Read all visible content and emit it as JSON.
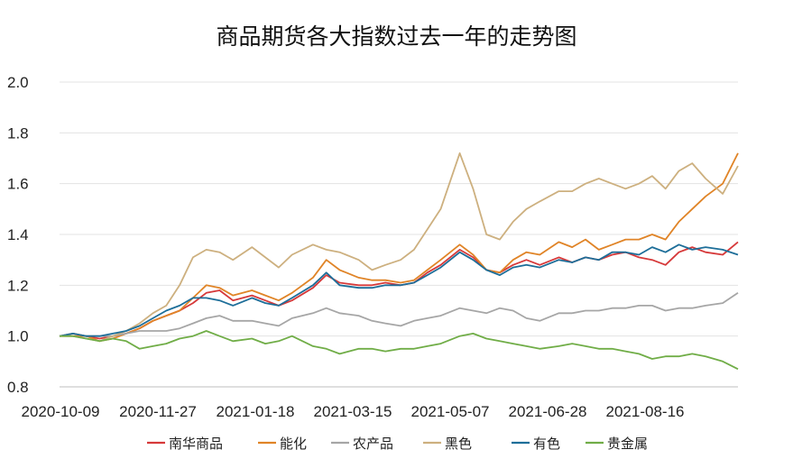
{
  "chart_data": {
    "type": "line",
    "title": "商品期货各大指数过去一年的走势图",
    "xlabel": "",
    "ylabel": "",
    "x_ticks": [
      "2020-10-09",
      "2020-11-27",
      "2021-01-18",
      "2021-03-15",
      "2021-05-07",
      "2021-06-28",
      "2021-08-16"
    ],
    "ylim": [
      0.8,
      2.0
    ],
    "y_ticks": [
      "0.8",
      "1.0",
      "1.2",
      "1.4",
      "1.6",
      "1.8",
      "2.0"
    ],
    "grid": "horizontal",
    "legend_position": "bottom",
    "x": [
      "2020-10-09",
      "2020-10-16",
      "2020-10-23",
      "2020-10-30",
      "2020-11-06",
      "2020-11-13",
      "2020-11-20",
      "2020-11-27",
      "2020-12-04",
      "2020-12-11",
      "2020-12-18",
      "2020-12-25",
      "2021-01-01",
      "2021-01-08",
      "2021-01-18",
      "2021-01-25",
      "2021-02-01",
      "2021-02-08",
      "2021-02-19",
      "2021-02-26",
      "2021-03-05",
      "2021-03-15",
      "2021-03-22",
      "2021-03-29",
      "2021-04-06",
      "2021-04-13",
      "2021-04-20",
      "2021-04-27",
      "2021-05-07",
      "2021-05-14",
      "2021-05-21",
      "2021-05-28",
      "2021-06-04",
      "2021-06-11",
      "2021-06-18",
      "2021-06-28",
      "2021-07-05",
      "2021-07-12",
      "2021-07-19",
      "2021-07-26",
      "2021-08-02",
      "2021-08-09",
      "2021-08-16",
      "2021-08-23",
      "2021-08-30",
      "2021-09-06",
      "2021-09-13",
      "2021-09-22",
      "2021-09-30"
    ],
    "series": [
      {
        "name": "南华商品",
        "color": "#d6393a",
        "values": [
          1.0,
          1.01,
          1.0,
          0.99,
          1.0,
          1.01,
          1.03,
          1.06,
          1.08,
          1.1,
          1.13,
          1.17,
          1.18,
          1.14,
          1.16,
          1.14,
          1.12,
          1.14,
          1.19,
          1.24,
          1.21,
          1.2,
          1.2,
          1.21,
          1.2,
          1.21,
          1.25,
          1.28,
          1.34,
          1.31,
          1.26,
          1.25,
          1.28,
          1.3,
          1.28,
          1.31,
          1.29,
          1.31,
          1.3,
          1.32,
          1.33,
          1.31,
          1.3,
          1.28,
          1.33,
          1.35,
          1.33,
          1.32,
          1.37
        ]
      },
      {
        "name": "能化",
        "color": "#e08427",
        "values": [
          1.0,
          1.0,
          1.0,
          0.98,
          0.99,
          1.01,
          1.03,
          1.06,
          1.08,
          1.1,
          1.15,
          1.2,
          1.19,
          1.16,
          1.18,
          1.16,
          1.14,
          1.17,
          1.23,
          1.3,
          1.26,
          1.23,
          1.22,
          1.22,
          1.21,
          1.22,
          1.26,
          1.3,
          1.36,
          1.32,
          1.26,
          1.25,
          1.3,
          1.33,
          1.32,
          1.37,
          1.35,
          1.38,
          1.34,
          1.36,
          1.38,
          1.38,
          1.4,
          1.38,
          1.45,
          1.5,
          1.55,
          1.6,
          1.72
        ]
      },
      {
        "name": "农产品",
        "color": "#a6a6a6",
        "values": [
          1.0,
          1.01,
          1.0,
          1.0,
          1.0,
          1.01,
          1.02,
          1.02,
          1.02,
          1.03,
          1.05,
          1.07,
          1.08,
          1.06,
          1.06,
          1.05,
          1.04,
          1.07,
          1.09,
          1.11,
          1.09,
          1.08,
          1.06,
          1.05,
          1.04,
          1.06,
          1.07,
          1.08,
          1.11,
          1.1,
          1.09,
          1.11,
          1.1,
          1.07,
          1.06,
          1.09,
          1.09,
          1.1,
          1.1,
          1.11,
          1.11,
          1.12,
          1.12,
          1.1,
          1.11,
          1.11,
          1.12,
          1.13,
          1.17
        ]
      },
      {
        "name": "黑色",
        "color": "#cdb07f",
        "values": [
          1.0,
          1.0,
          0.99,
          0.98,
          1.0,
          1.02,
          1.05,
          1.09,
          1.12,
          1.2,
          1.31,
          1.34,
          1.33,
          1.3,
          1.35,
          1.31,
          1.27,
          1.32,
          1.36,
          1.34,
          1.33,
          1.3,
          1.26,
          1.28,
          1.3,
          1.34,
          1.42,
          1.5,
          1.72,
          1.58,
          1.4,
          1.38,
          1.45,
          1.5,
          1.53,
          1.57,
          1.57,
          1.6,
          1.62,
          1.6,
          1.58,
          1.6,
          1.63,
          1.58,
          1.65,
          1.68,
          1.62,
          1.56,
          1.67
        ]
      },
      {
        "name": "有色",
        "color": "#1d6e99",
        "values": [
          1.0,
          1.01,
          1.0,
          1.0,
          1.01,
          1.02,
          1.04,
          1.07,
          1.1,
          1.12,
          1.15,
          1.15,
          1.14,
          1.12,
          1.15,
          1.13,
          1.12,
          1.15,
          1.2,
          1.25,
          1.2,
          1.19,
          1.19,
          1.2,
          1.2,
          1.21,
          1.24,
          1.27,
          1.33,
          1.3,
          1.26,
          1.24,
          1.27,
          1.28,
          1.27,
          1.3,
          1.29,
          1.31,
          1.3,
          1.33,
          1.33,
          1.32,
          1.35,
          1.33,
          1.36,
          1.34,
          1.35,
          1.34,
          1.32
        ]
      },
      {
        "name": "贵金属",
        "color": "#70ad47",
        "values": [
          1.0,
          1.0,
          0.99,
          0.98,
          0.99,
          0.98,
          0.95,
          0.96,
          0.97,
          0.99,
          1.0,
          1.02,
          1.0,
          0.98,
          0.99,
          0.97,
          0.98,
          1.0,
          0.96,
          0.95,
          0.93,
          0.95,
          0.95,
          0.94,
          0.95,
          0.95,
          0.96,
          0.97,
          1.0,
          1.01,
          0.99,
          0.98,
          0.97,
          0.96,
          0.95,
          0.96,
          0.97,
          0.96,
          0.95,
          0.95,
          0.94,
          0.93,
          0.91,
          0.92,
          0.92,
          0.93,
          0.92,
          0.9,
          0.87
        ]
      }
    ]
  }
}
